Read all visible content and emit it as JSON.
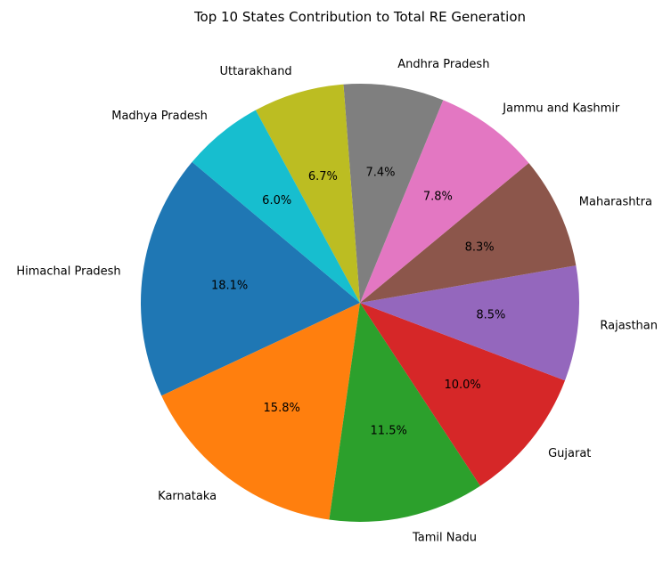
{
  "chart_data": {
    "type": "pie",
    "title": "Top 10 States Contribution to Total RE Generation",
    "start_angle_deg": 140,
    "direction": "counterclockwise",
    "slices": [
      {
        "label": "Himachal Pradesh",
        "value": 18.1,
        "pct_label": "18.1%",
        "color": "#1f77b4"
      },
      {
        "label": "Karnataka",
        "value": 15.8,
        "pct_label": "15.8%",
        "color": "#ff7f0e"
      },
      {
        "label": "Tamil Nadu",
        "value": 11.5,
        "pct_label": "11.5%",
        "color": "#2ca02c"
      },
      {
        "label": "Gujarat",
        "value": 10.0,
        "pct_label": "10.0%",
        "color": "#d62728"
      },
      {
        "label": "Rajasthan",
        "value": 8.5,
        "pct_label": "8.5%",
        "color": "#9467bd"
      },
      {
        "label": "Maharashtra",
        "value": 8.3,
        "pct_label": "8.3%",
        "color": "#8c564b"
      },
      {
        "label": "Jammu and Kashmir",
        "value": 7.8,
        "pct_label": "7.8%",
        "color": "#e377c2"
      },
      {
        "label": "Andhra Pradesh",
        "value": 7.4,
        "pct_label": "7.4%",
        "color": "#7f7f7f"
      },
      {
        "label": "Uttarakhand",
        "value": 6.7,
        "pct_label": "6.7%",
        "color": "#bcbd22"
      },
      {
        "label": "Madhya Pradesh",
        "value": 6.0,
        "pct_label": "6.0%",
        "color": "#17becf"
      }
    ]
  }
}
